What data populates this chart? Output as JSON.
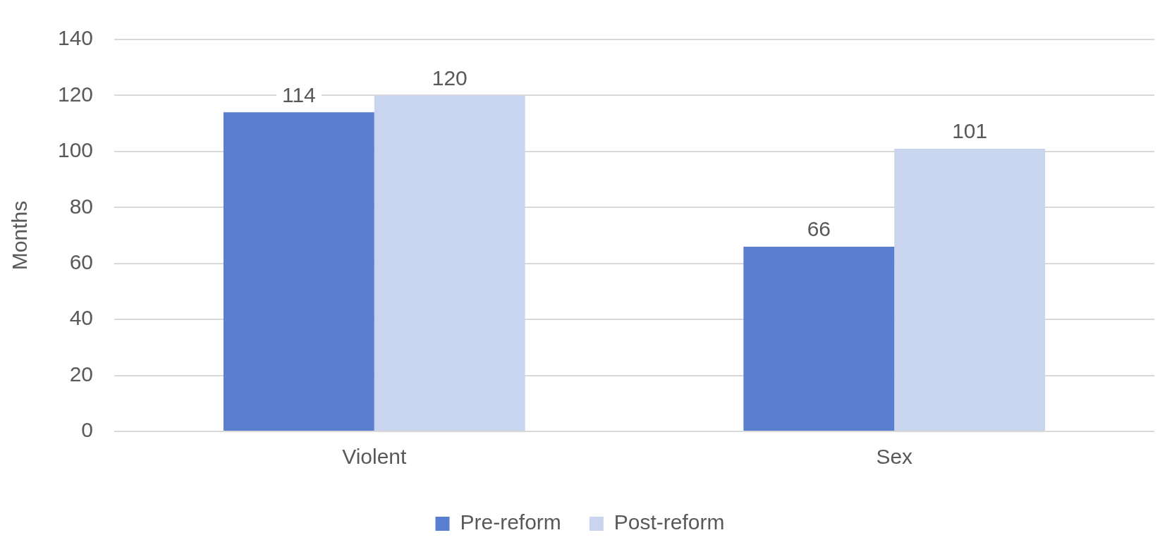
{
  "chart_data": {
    "type": "bar",
    "ylabel": "Months",
    "categories": [
      "Violent",
      "Sex"
    ],
    "series": [
      {
        "name": "Pre-reform",
        "color": "#5a7fd0",
        "values": [
          114,
          66
        ]
      },
      {
        "name": "Post-reform",
        "color": "#c9d4ef",
        "values": [
          120,
          101
        ]
      }
    ],
    "ylim": [
      0,
      140
    ],
    "yticks": [
      0,
      20,
      40,
      60,
      80,
      100,
      120,
      140
    ],
    "grid": "y",
    "legend": "bottom",
    "data_labels": true
  }
}
